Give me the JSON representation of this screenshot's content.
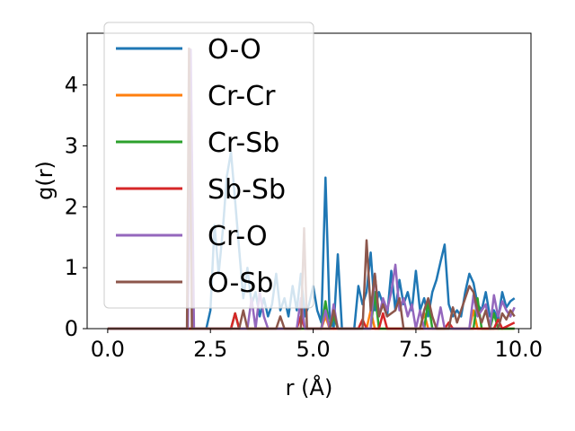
{
  "chart_data": {
    "type": "line",
    "title": "",
    "xlabel": "r (Å)",
    "ylabel": "g(r)",
    "xlim": [
      -0.5,
      10.3
    ],
    "ylim": [
      0,
      4.85
    ],
    "xticks": [
      0.0,
      2.5,
      5.0,
      7.5,
      10.0
    ],
    "xtick_labels": [
      "0.0",
      "2.5",
      "5.0",
      "7.5",
      "10.0"
    ],
    "yticks": [
      0,
      1,
      2,
      3,
      4
    ],
    "ytick_labels": [
      "0",
      "1",
      "2",
      "3",
      "4"
    ],
    "grid": false,
    "legend_position": "upper-left",
    "series": [
      {
        "name": "O-O",
        "color": "#1f77b4",
        "points": [
          [
            0,
            0
          ],
          [
            2.4,
            0
          ],
          [
            2.5,
            0.3
          ],
          [
            2.6,
            1.7
          ],
          [
            2.7,
            0.9
          ],
          [
            2.8,
            1.6
          ],
          [
            2.9,
            2.5
          ],
          [
            3.0,
            2.9
          ],
          [
            3.1,
            2.1
          ],
          [
            3.2,
            1.3
          ],
          [
            3.3,
            0.5
          ],
          [
            3.4,
            1.0
          ],
          [
            3.5,
            0.4
          ],
          [
            3.6,
            0.6
          ],
          [
            3.7,
            0.2
          ],
          [
            3.8,
            0.5
          ],
          [
            3.9,
            0.2
          ],
          [
            4.0,
            0.4
          ],
          [
            4.1,
            0.9
          ],
          [
            4.2,
            0.3
          ],
          [
            4.3,
            0.5
          ],
          [
            4.4,
            0.2
          ],
          [
            4.5,
            0.7
          ],
          [
            4.6,
            0.3
          ],
          [
            4.7,
            0.9
          ],
          [
            4.8,
            0.2
          ],
          [
            4.9,
            0.4
          ],
          [
            5.0,
            0.7
          ],
          [
            5.1,
            0.3
          ],
          [
            5.2,
            0.1
          ],
          [
            5.3,
            2.48
          ],
          [
            5.4,
            0.2
          ],
          [
            5.5,
            0.0
          ],
          [
            5.6,
            1.22
          ],
          [
            5.7,
            0.0
          ],
          [
            5.8,
            0.0
          ],
          [
            5.9,
            0.0
          ],
          [
            6.0,
            0.0
          ],
          [
            6.1,
            0.7
          ],
          [
            6.2,
            0.4
          ],
          [
            6.3,
            0.6
          ],
          [
            6.4,
            1.25
          ],
          [
            6.5,
            0.3
          ],
          [
            6.6,
            0.6
          ],
          [
            6.7,
            0.4
          ],
          [
            6.8,
            0.2
          ],
          [
            6.9,
            0.95
          ],
          [
            7.0,
            0.3
          ],
          [
            7.1,
            0.8
          ],
          [
            7.2,
            0.4
          ],
          [
            7.3,
            0.6
          ],
          [
            7.4,
            0.3
          ],
          [
            7.5,
            0.95
          ],
          [
            7.6,
            0.3
          ],
          [
            7.7,
            0.5
          ],
          [
            7.8,
            0.2
          ],
          [
            7.9,
            0.6
          ],
          [
            8.0,
            0.8
          ],
          [
            8.1,
            1.1
          ],
          [
            8.2,
            1.38
          ],
          [
            8.3,
            0.4
          ],
          [
            8.4,
            0.2
          ],
          [
            8.5,
            0.3
          ],
          [
            8.6,
            0.2
          ],
          [
            8.7,
            0.6
          ],
          [
            8.8,
            0.9
          ],
          [
            8.9,
            0.75
          ],
          [
            9.0,
            0.4
          ],
          [
            9.1,
            0.3
          ],
          [
            9.2,
            0.6
          ],
          [
            9.3,
            0.2
          ],
          [
            9.4,
            0.3
          ],
          [
            9.5,
            0.15
          ],
          [
            9.6,
            0.6
          ],
          [
            9.7,
            0.35
          ],
          [
            9.8,
            0.45
          ],
          [
            9.9,
            0.5
          ]
        ]
      },
      {
        "name": "Cr-Cr",
        "color": "#ff7f0e",
        "points": [
          [
            0,
            0
          ],
          [
            5.2,
            0
          ],
          [
            5.3,
            0.2
          ],
          [
            5.4,
            0.0
          ],
          [
            6.3,
            0.0
          ],
          [
            6.4,
            0.3
          ],
          [
            6.5,
            0.0
          ],
          [
            7.6,
            0.0
          ],
          [
            7.7,
            0.25
          ],
          [
            7.8,
            0.0
          ],
          [
            8.8,
            0.0
          ],
          [
            8.9,
            0.3
          ],
          [
            9.0,
            0.0
          ],
          [
            9.9,
            0.0
          ]
        ]
      },
      {
        "name": "Cr-Sb",
        "color": "#2ca02c",
        "points": [
          [
            0,
            0
          ],
          [
            3.0,
            0
          ],
          [
            3.1,
            0.25
          ],
          [
            3.2,
            0.0
          ],
          [
            5.2,
            0.0
          ],
          [
            5.3,
            0.45
          ],
          [
            5.4,
            0.0
          ],
          [
            5.5,
            0.2
          ],
          [
            5.6,
            0.0
          ],
          [
            6.4,
            0.0
          ],
          [
            6.5,
            0.6
          ],
          [
            6.6,
            0.0
          ],
          [
            7.7,
            0.0
          ],
          [
            7.8,
            0.45
          ],
          [
            7.9,
            0.0
          ],
          [
            8.9,
            0.0
          ],
          [
            9.0,
            0.5
          ],
          [
            9.1,
            0.0
          ],
          [
            9.3,
            0.0
          ],
          [
            9.4,
            0.25
          ],
          [
            9.5,
            0.0
          ],
          [
            9.9,
            0.0
          ]
        ]
      },
      {
        "name": "Sb-Sb",
        "color": "#d62728",
        "points": [
          [
            0,
            0
          ],
          [
            3.0,
            0
          ],
          [
            3.1,
            0.25
          ],
          [
            3.2,
            0.0
          ],
          [
            4.6,
            0.0
          ],
          [
            4.7,
            0.2
          ],
          [
            4.8,
            0.0
          ],
          [
            6.1,
            0.0
          ],
          [
            6.2,
            0.15
          ],
          [
            6.3,
            0.0
          ],
          [
            6.6,
            0.0
          ],
          [
            6.7,
            0.25
          ],
          [
            6.8,
            0.0
          ],
          [
            8.2,
            0.0
          ],
          [
            8.3,
            0.1
          ],
          [
            8.4,
            0.0
          ],
          [
            9.4,
            0.0
          ],
          [
            9.5,
            0.15
          ],
          [
            9.6,
            0.0
          ],
          [
            9.9,
            0.1
          ]
        ]
      },
      {
        "name": "Cr-O",
        "color": "#9467bd",
        "points": [
          [
            0,
            0
          ],
          [
            1.95,
            0
          ],
          [
            2.02,
            4.58
          ],
          [
            2.1,
            0.0
          ],
          [
            3.4,
            0.0
          ],
          [
            3.5,
            0.5
          ],
          [
            3.6,
            0.0
          ],
          [
            3.7,
            0.6
          ],
          [
            3.8,
            0.2
          ],
          [
            3.9,
            0.0
          ],
          [
            4.6,
            0.0
          ],
          [
            4.7,
            0.5
          ],
          [
            4.8,
            0.0
          ],
          [
            5.2,
            0.0
          ],
          [
            5.3,
            0.3
          ],
          [
            5.4,
            0.0
          ],
          [
            5.5,
            0.4
          ],
          [
            5.6,
            0.0
          ],
          [
            6.4,
            0.0
          ],
          [
            6.5,
            0.9
          ],
          [
            6.6,
            0.2
          ],
          [
            6.7,
            0.5
          ],
          [
            6.8,
            0.3
          ],
          [
            6.9,
            0.6
          ],
          [
            7.0,
            1.05
          ],
          [
            7.1,
            0.3
          ],
          [
            7.2,
            0.5
          ],
          [
            7.3,
            0.2
          ],
          [
            7.4,
            0.4
          ],
          [
            7.5,
            0.0
          ],
          [
            7.6,
            0.3
          ],
          [
            7.7,
            0.0
          ],
          [
            8.0,
            0.0
          ],
          [
            8.1,
            0.35
          ],
          [
            8.2,
            0.0
          ],
          [
            8.8,
            0.0
          ],
          [
            8.9,
            0.55
          ],
          [
            9.0,
            0.2
          ],
          [
            9.2,
            0.4
          ],
          [
            9.3,
            0.0
          ],
          [
            9.4,
            0.55
          ],
          [
            9.5,
            0.2
          ],
          [
            9.6,
            0.45
          ],
          [
            9.7,
            0.3
          ],
          [
            9.8,
            0.2
          ],
          [
            9.9,
            0.35
          ]
        ]
      },
      {
        "name": "O-Sb",
        "color": "#8c564b",
        "points": [
          [
            0,
            0
          ],
          [
            1.93,
            0
          ],
          [
            1.98,
            4.6
          ],
          [
            2.05,
            0.0
          ],
          [
            3.2,
            0.0
          ],
          [
            3.3,
            0.3
          ],
          [
            3.4,
            0.0
          ],
          [
            4.1,
            0.0
          ],
          [
            4.2,
            0.2
          ],
          [
            4.3,
            0.0
          ],
          [
            4.7,
            0.0
          ],
          [
            4.78,
            1.65
          ],
          [
            4.85,
            0.0
          ],
          [
            5.4,
            0.0
          ],
          [
            5.5,
            0.3
          ],
          [
            5.6,
            0.0
          ],
          [
            6.2,
            0.0
          ],
          [
            6.3,
            1.45
          ],
          [
            6.4,
            0.3
          ],
          [
            6.5,
            0.9
          ],
          [
            6.6,
            0.2
          ],
          [
            6.7,
            0.4
          ],
          [
            6.8,
            0.2
          ],
          [
            7.0,
            0.3
          ],
          [
            7.1,
            0.5
          ],
          [
            7.2,
            0.0
          ],
          [
            7.6,
            0.0
          ],
          [
            7.7,
            0.3
          ],
          [
            7.8,
            0.5
          ],
          [
            7.9,
            0.2
          ],
          [
            8.0,
            0.0
          ],
          [
            8.3,
            0.0
          ],
          [
            8.4,
            0.35
          ],
          [
            8.5,
            0.1
          ],
          [
            8.6,
            0.3
          ],
          [
            8.7,
            0.5
          ],
          [
            8.8,
            0.7
          ],
          [
            8.9,
            0.6
          ],
          [
            9.0,
            0.3
          ],
          [
            9.1,
            0.1
          ],
          [
            9.2,
            0.3
          ],
          [
            9.3,
            0.0
          ],
          [
            9.5,
            0.0
          ],
          [
            9.6,
            0.25
          ],
          [
            9.7,
            0.15
          ],
          [
            9.8,
            0.3
          ],
          [
            9.9,
            0.2
          ]
        ]
      }
    ]
  }
}
